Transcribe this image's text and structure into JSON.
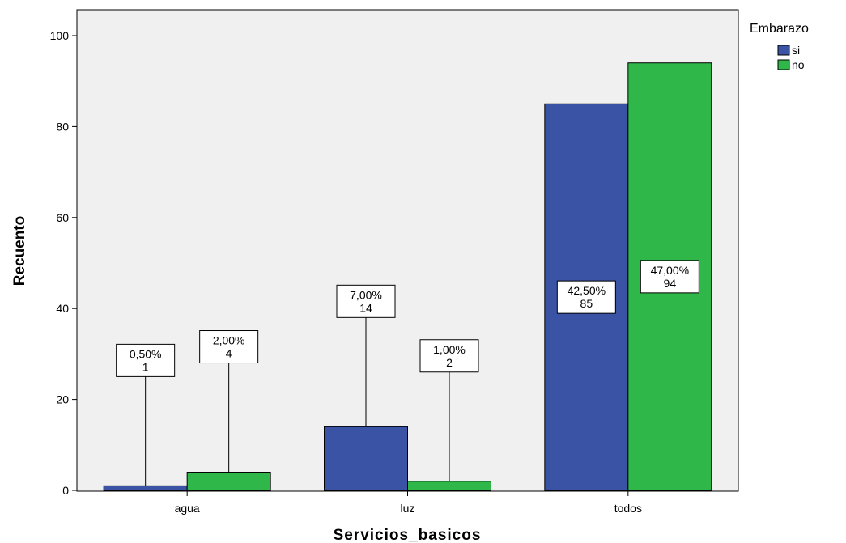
{
  "chart_data": {
    "type": "bar",
    "categories": [
      "agua",
      "luz",
      "todos"
    ],
    "series": [
      {
        "name": "si",
        "values": [
          1,
          14,
          85
        ],
        "labels": [
          "0,50%",
          "7,00%",
          "42,50%"
        ]
      },
      {
        "name": "no",
        "values": [
          4,
          2,
          94
        ],
        "labels": [
          "2,00%",
          "1,00%",
          "47,00%"
        ]
      }
    ],
    "title": "",
    "xlabel": "Servicios_basicos",
    "ylabel": "Recuento",
    "ylim": [
      0,
      100
    ],
    "yticks": [
      0,
      20,
      40,
      60,
      80,
      100
    ],
    "grid": false,
    "legend": {
      "title": "Embarazo",
      "position": "top-right"
    },
    "colors": {
      "si": "#3a53a4",
      "no": "#2fb74a",
      "plot_background": "#f0f0f0"
    }
  }
}
